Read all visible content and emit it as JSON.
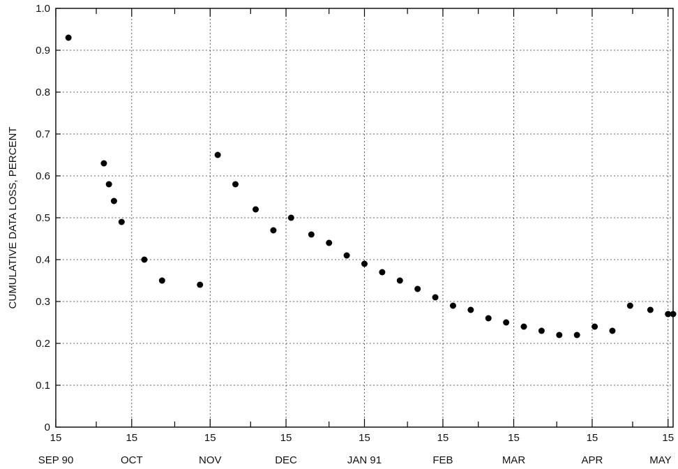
{
  "chart_data": {
    "type": "scatter",
    "ylabel": "CUMULATIVE DATA LOSS, PERCENT",
    "xlabel": "",
    "ylim": [
      0,
      1.0
    ],
    "yticks": [
      "0",
      "0.1",
      "0.2",
      "0.3",
      "0.4",
      "0.5",
      "0.6",
      "0.7",
      "0.8",
      "0.9",
      "1.0"
    ],
    "xlim": [
      "1990-09-15",
      "1991-05-17"
    ],
    "xtick_day_labels": [
      "15",
      "15",
      "15",
      "15",
      "15",
      "15",
      "15",
      "15",
      "15"
    ],
    "xtick_month_labels": [
      "SEP 90",
      "OCT",
      "NOV",
      "DEC",
      "JAN 91",
      "FEB",
      "MAR",
      "APR",
      "MAY"
    ],
    "grid": true,
    "series": [
      {
        "points": [
          {
            "x": "1990-09-20",
            "y": 0.93
          },
          {
            "x": "1990-10-04",
            "y": 0.63
          },
          {
            "x": "1990-10-06",
            "y": 0.58
          },
          {
            "x": "1990-10-08",
            "y": 0.54
          },
          {
            "x": "1990-10-11",
            "y": 0.49
          },
          {
            "x": "1990-10-20",
            "y": 0.4
          },
          {
            "x": "1990-10-27",
            "y": 0.35
          },
          {
            "x": "1990-11-11",
            "y": 0.34
          },
          {
            "x": "1990-11-18",
            "y": 0.65
          },
          {
            "x": "1990-11-25",
            "y": 0.58
          },
          {
            "x": "1990-12-03",
            "y": 0.52
          },
          {
            "x": "1990-12-10",
            "y": 0.47
          },
          {
            "x": "1990-12-17",
            "y": 0.5
          },
          {
            "x": "1990-12-25",
            "y": 0.46
          },
          {
            "x": "1991-01-01",
            "y": 0.44
          },
          {
            "x": "1991-01-08",
            "y": 0.41
          },
          {
            "x": "1991-01-15",
            "y": 0.39
          },
          {
            "x": "1991-01-22",
            "y": 0.37
          },
          {
            "x": "1991-01-29",
            "y": 0.35
          },
          {
            "x": "1991-02-05",
            "y": 0.33
          },
          {
            "x": "1991-02-12",
            "y": 0.31
          },
          {
            "x": "1991-02-19",
            "y": 0.29
          },
          {
            "x": "1991-02-26",
            "y": 0.28
          },
          {
            "x": "1991-03-05",
            "y": 0.26
          },
          {
            "x": "1991-03-12",
            "y": 0.25
          },
          {
            "x": "1991-03-19",
            "y": 0.24
          },
          {
            "x": "1991-03-26",
            "y": 0.23
          },
          {
            "x": "1991-04-02",
            "y": 0.22
          },
          {
            "x": "1991-04-09",
            "y": 0.22
          },
          {
            "x": "1991-04-16",
            "y": 0.24
          },
          {
            "x": "1991-04-23",
            "y": 0.23
          },
          {
            "x": "1991-04-30",
            "y": 0.29
          },
          {
            "x": "1991-05-08",
            "y": 0.28
          },
          {
            "x": "1991-05-15",
            "y": 0.27
          },
          {
            "x": "1991-05-17",
            "y": 0.27
          }
        ]
      }
    ]
  }
}
